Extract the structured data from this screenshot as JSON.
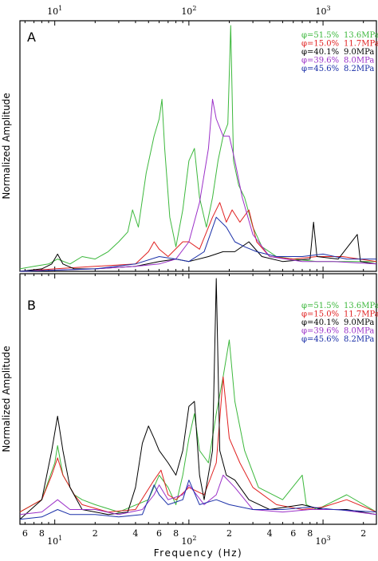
{
  "chart_data": [
    {
      "type": "line",
      "panel_label": "A",
      "xlabel": "",
      "ylabel": "Normalized Amplitude",
      "x_scale": "log",
      "xlim": [
        5.5,
        2500
      ],
      "ylim": [
        0,
        1
      ],
      "top_axis_ticks": [
        {
          "x": 10,
          "base": "10",
          "exp": "1"
        },
        {
          "x": 100,
          "base": "10",
          "exp": "2"
        },
        {
          "x": 1000,
          "base": "10",
          "exp": "3"
        }
      ],
      "legend_position": "top-right",
      "series": [
        {
          "phi": "φ=51.5%",
          "stress": "13.6MPa",
          "color": "#3cb83c",
          "points": [
            [
              5.5,
              0.01
            ],
            [
              7,
              0.02
            ],
            [
              9,
              0.03
            ],
            [
              10.5,
              0.05
            ],
            [
              13,
              0.03
            ],
            [
              16,
              0.06
            ],
            [
              20,
              0.05
            ],
            [
              25,
              0.08
            ],
            [
              30,
              0.12
            ],
            [
              35,
              0.16
            ],
            [
              38,
              0.25
            ],
            [
              42,
              0.18
            ],
            [
              48,
              0.4
            ],
            [
              55,
              0.55
            ],
            [
              60,
              0.62
            ],
            [
              63,
              0.7
            ],
            [
              66,
              0.5
            ],
            [
              72,
              0.22
            ],
            [
              80,
              0.1
            ],
            [
              90,
              0.25
            ],
            [
              100,
              0.45
            ],
            [
              110,
              0.5
            ],
            [
              120,
              0.3
            ],
            [
              135,
              0.18
            ],
            [
              150,
              0.3
            ],
            [
              165,
              0.45
            ],
            [
              180,
              0.55
            ],
            [
              195,
              0.6
            ],
            [
              205,
              1.0
            ],
            [
              215,
              0.45
            ],
            [
              235,
              0.35
            ],
            [
              260,
              0.3
            ],
            [
              300,
              0.18
            ],
            [
              350,
              0.1
            ],
            [
              450,
              0.06
            ],
            [
              600,
              0.05
            ],
            [
              900,
              0.04
            ],
            [
              1500,
              0.04
            ],
            [
              2500,
              0.04
            ]
          ]
        },
        {
          "phi": "φ=15.0%",
          "stress": "11.7MPa",
          "color": "#e02020",
          "points": [
            [
              5.5,
              0.0
            ],
            [
              10,
              0.01
            ],
            [
              20,
              0.02
            ],
            [
              40,
              0.03
            ],
            [
              50,
              0.08
            ],
            [
              55,
              0.12
            ],
            [
              60,
              0.09
            ],
            [
              70,
              0.06
            ],
            [
              90,
              0.12
            ],
            [
              100,
              0.12
            ],
            [
              120,
              0.09
            ],
            [
              150,
              0.22
            ],
            [
              170,
              0.28
            ],
            [
              190,
              0.2
            ],
            [
              210,
              0.25
            ],
            [
              240,
              0.2
            ],
            [
              280,
              0.25
            ],
            [
              320,
              0.12
            ],
            [
              400,
              0.06
            ],
            [
              600,
              0.05
            ],
            [
              900,
              0.06
            ],
            [
              1400,
              0.06
            ],
            [
              2500,
              0.04
            ]
          ]
        },
        {
          "phi": "φ=40.1%",
          "stress": "9.0MPa",
          "color": "#000000",
          "points": [
            [
              5.5,
              0.0
            ],
            [
              8,
              0.01
            ],
            [
              9.5,
              0.03
            ],
            [
              10.5,
              0.07
            ],
            [
              11.5,
              0.03
            ],
            [
              14,
              0.01
            ],
            [
              20,
              0.01
            ],
            [
              40,
              0.02
            ],
            [
              60,
              0.04
            ],
            [
              80,
              0.05
            ],
            [
              100,
              0.04
            ],
            [
              140,
              0.06
            ],
            [
              180,
              0.08
            ],
            [
              220,
              0.08
            ],
            [
              280,
              0.12
            ],
            [
              350,
              0.06
            ],
            [
              500,
              0.04
            ],
            [
              800,
              0.05
            ],
            [
              850,
              0.2
            ],
            [
              900,
              0.06
            ],
            [
              1300,
              0.05
            ],
            [
              1800,
              0.15
            ],
            [
              1900,
              0.04
            ],
            [
              2500,
              0.03
            ]
          ]
        },
        {
          "phi": "φ=39.6%",
          "stress": "8.0MPa",
          "color": "#9b30c8",
          "points": [
            [
              5.5,
              0.0
            ],
            [
              20,
              0.01
            ],
            [
              40,
              0.02
            ],
            [
              60,
              0.03
            ],
            [
              80,
              0.05
            ],
            [
              100,
              0.12
            ],
            [
              120,
              0.28
            ],
            [
              140,
              0.5
            ],
            [
              150,
              0.7
            ],
            [
              160,
              0.62
            ],
            [
              180,
              0.55
            ],
            [
              200,
              0.55
            ],
            [
              220,
              0.45
            ],
            [
              250,
              0.3
            ],
            [
              300,
              0.15
            ],
            [
              400,
              0.06
            ],
            [
              700,
              0.04
            ],
            [
              1200,
              0.04
            ],
            [
              2500,
              0.03
            ]
          ]
        },
        {
          "phi": "φ=45.6%",
          "stress": "8.2MPa",
          "color": "#1a2fa8",
          "points": [
            [
              5.5,
              0.0
            ],
            [
              20,
              0.01
            ],
            [
              40,
              0.03
            ],
            [
              60,
              0.06
            ],
            [
              80,
              0.05
            ],
            [
              100,
              0.04
            ],
            [
              130,
              0.08
            ],
            [
              160,
              0.22
            ],
            [
              190,
              0.18
            ],
            [
              220,
              0.12
            ],
            [
              260,
              0.1
            ],
            [
              320,
              0.08
            ],
            [
              450,
              0.06
            ],
            [
              700,
              0.06
            ],
            [
              1000,
              0.07
            ],
            [
              1500,
              0.05
            ],
            [
              2500,
              0.05
            ]
          ]
        }
      ]
    },
    {
      "type": "line",
      "panel_label": "B",
      "xlabel": "Frequency (Hz)",
      "ylabel": "Normalized Amplitude",
      "x_scale": "log",
      "xlim": [
        5.5,
        2500
      ],
      "ylim": [
        0,
        1
      ],
      "bottom_axis_ticks": [
        {
          "x": 6,
          "label": "6"
        },
        {
          "x": 8,
          "label": "8"
        },
        {
          "x": 10,
          "base": "10",
          "exp": "1"
        },
        {
          "x": 20,
          "label": "2"
        },
        {
          "x": 40,
          "label": "4"
        },
        {
          "x": 60,
          "label": "6"
        },
        {
          "x": 80,
          "label": "8"
        },
        {
          "x": 100,
          "base": "10",
          "exp": "2"
        },
        {
          "x": 200,
          "label": "2"
        },
        {
          "x": 400,
          "label": "4"
        },
        {
          "x": 600,
          "label": "6"
        },
        {
          "x": 800,
          "label": "8"
        },
        {
          "x": 1000,
          "base": "10",
          "exp": "3"
        },
        {
          "x": 2000,
          "label": "2"
        }
      ],
      "legend_position": "top-right",
      "series": [
        {
          "phi": "φ=51.5%",
          "stress": "13.6MPa",
          "color": "#3cb83c",
          "points": [
            [
              5.5,
              0.05
            ],
            [
              8,
              0.1
            ],
            [
              10,
              0.25
            ],
            [
              10.5,
              0.32
            ],
            [
              11.5,
              0.2
            ],
            [
              14,
              0.12
            ],
            [
              16,
              0.1
            ],
            [
              20,
              0.08
            ],
            [
              30,
              0.05
            ],
            [
              50,
              0.1
            ],
            [
              60,
              0.2
            ],
            [
              70,
              0.15
            ],
            [
              80,
              0.08
            ],
            [
              90,
              0.2
            ],
            [
              100,
              0.35
            ],
            [
              110,
              0.45
            ],
            [
              120,
              0.3
            ],
            [
              140,
              0.25
            ],
            [
              160,
              0.45
            ],
            [
              180,
              0.6
            ],
            [
              200,
              0.75
            ],
            [
              220,
              0.5
            ],
            [
              260,
              0.3
            ],
            [
              330,
              0.15
            ],
            [
              500,
              0.1
            ],
            [
              700,
              0.2
            ],
            [
              750,
              0.08
            ],
            [
              900,
              0.06
            ],
            [
              1500,
              0.12
            ],
            [
              2500,
              0.05
            ]
          ]
        },
        {
          "phi": "φ=15.0%",
          "stress": "11.7MPa",
          "color": "#e02020",
          "points": [
            [
              5.5,
              0.05
            ],
            [
              8,
              0.1
            ],
            [
              9.5,
              0.2
            ],
            [
              10.5,
              0.27
            ],
            [
              11.5,
              0.2
            ],
            [
              14,
              0.12
            ],
            [
              16,
              0.08
            ],
            [
              25,
              0.05
            ],
            [
              40,
              0.06
            ],
            [
              55,
              0.18
            ],
            [
              62,
              0.22
            ],
            [
              70,
              0.12
            ],
            [
              80,
              0.1
            ],
            [
              100,
              0.15
            ],
            [
              130,
              0.12
            ],
            [
              160,
              0.25
            ],
            [
              180,
              0.6
            ],
            [
              200,
              0.35
            ],
            [
              240,
              0.25
            ],
            [
              300,
              0.15
            ],
            [
              450,
              0.08
            ],
            [
              700,
              0.06
            ],
            [
              1000,
              0.07
            ],
            [
              1500,
              0.1
            ],
            [
              2500,
              0.05
            ]
          ]
        },
        {
          "phi": "φ=40.1%",
          "stress": "9.0MPa",
          "color": "#000000",
          "points": [
            [
              5.5,
              0.02
            ],
            [
              8,
              0.1
            ],
            [
              9.5,
              0.3
            ],
            [
              10.5,
              0.44
            ],
            [
              11.5,
              0.3
            ],
            [
              13,
              0.15
            ],
            [
              16,
              0.06
            ],
            [
              25,
              0.04
            ],
            [
              35,
              0.05
            ],
            [
              40,
              0.15
            ],
            [
              45,
              0.33
            ],
            [
              50,
              0.4
            ],
            [
              55,
              0.35
            ],
            [
              60,
              0.3
            ],
            [
              70,
              0.25
            ],
            [
              80,
              0.2
            ],
            [
              90,
              0.3
            ],
            [
              100,
              0.48
            ],
            [
              110,
              0.5
            ],
            [
              120,
              0.2
            ],
            [
              130,
              0.1
            ],
            [
              150,
              0.3
            ],
            [
              160,
              1.0
            ],
            [
              170,
              0.3
            ],
            [
              190,
              0.2
            ],
            [
              220,
              0.18
            ],
            [
              280,
              0.1
            ],
            [
              400,
              0.06
            ],
            [
              700,
              0.08
            ],
            [
              1000,
              0.06
            ],
            [
              1500,
              0.06
            ],
            [
              2500,
              0.04
            ]
          ]
        },
        {
          "phi": "φ=39.6%",
          "stress": "8.0MPa",
          "color": "#9b30c8",
          "points": [
            [
              5.5,
              0.04
            ],
            [
              8,
              0.05
            ],
            [
              10.5,
              0.1
            ],
            [
              13,
              0.06
            ],
            [
              20,
              0.06
            ],
            [
              30,
              0.04
            ],
            [
              45,
              0.06
            ],
            [
              55,
              0.12
            ],
            [
              60,
              0.16
            ],
            [
              70,
              0.1
            ],
            [
              90,
              0.12
            ],
            [
              100,
              0.16
            ],
            [
              130,
              0.08
            ],
            [
              160,
              0.12
            ],
            [
              180,
              0.2
            ],
            [
              220,
              0.15
            ],
            [
              300,
              0.06
            ],
            [
              500,
              0.05
            ],
            [
              800,
              0.06
            ],
            [
              1300,
              0.06
            ],
            [
              2500,
              0.04
            ]
          ]
        },
        {
          "phi": "φ=45.6%",
          "stress": "8.2MPa",
          "color": "#1a2fa8",
          "points": [
            [
              5.5,
              0.02
            ],
            [
              8,
              0.03
            ],
            [
              10.5,
              0.06
            ],
            [
              13,
              0.04
            ],
            [
              20,
              0.04
            ],
            [
              30,
              0.03
            ],
            [
              45,
              0.04
            ],
            [
              55,
              0.16
            ],
            [
              60,
              0.12
            ],
            [
              70,
              0.08
            ],
            [
              90,
              0.1
            ],
            [
              100,
              0.18
            ],
            [
              120,
              0.08
            ],
            [
              160,
              0.1
            ],
            [
              200,
              0.08
            ],
            [
              300,
              0.06
            ],
            [
              500,
              0.06
            ],
            [
              800,
              0.07
            ],
            [
              1200,
              0.06
            ],
            [
              2500,
              0.05
            ]
          ]
        }
      ]
    }
  ]
}
